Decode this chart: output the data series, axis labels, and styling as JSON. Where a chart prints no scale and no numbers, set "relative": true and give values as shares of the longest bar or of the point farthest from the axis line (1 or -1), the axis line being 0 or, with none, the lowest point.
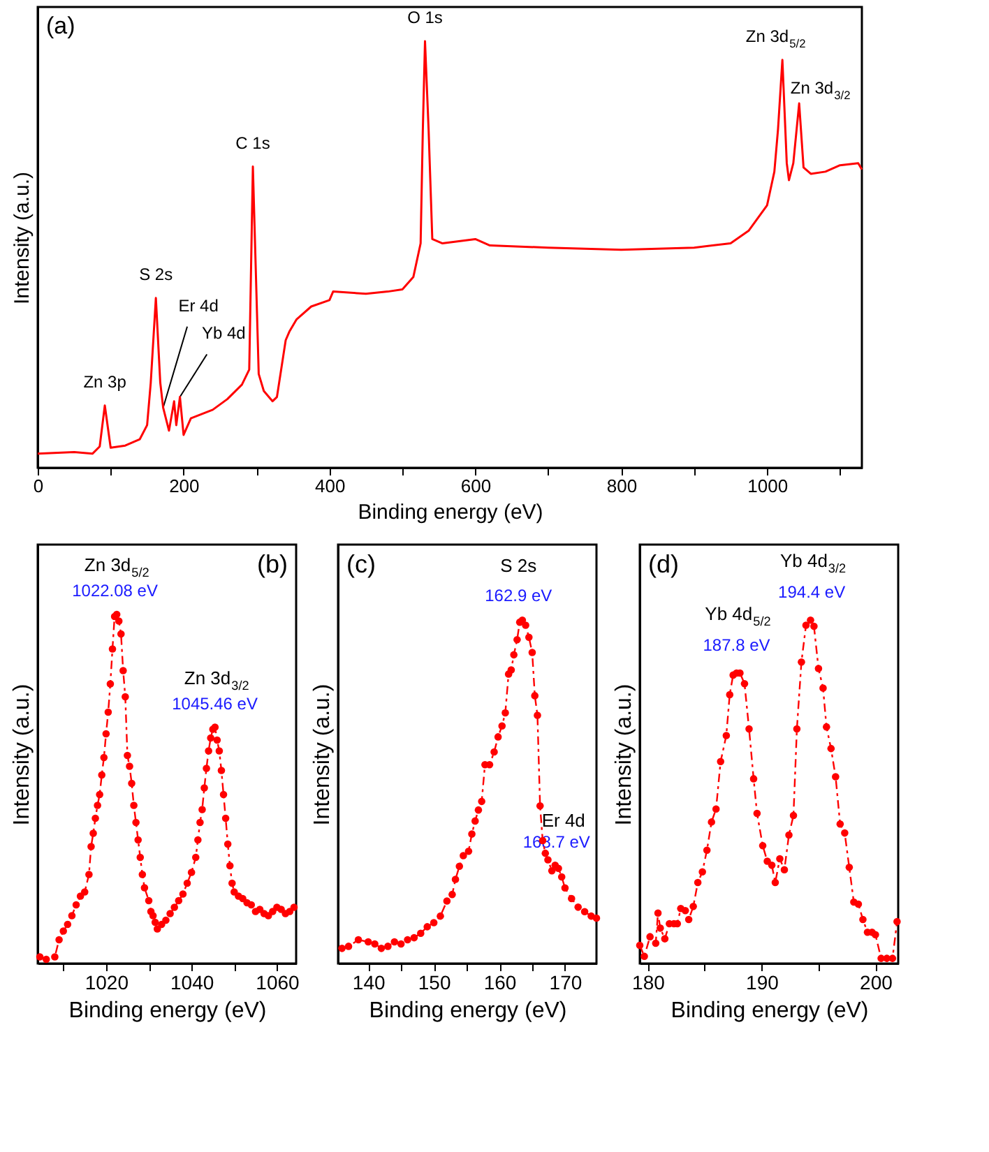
{
  "chart_data": [
    {
      "type": "line",
      "relative": true,
      "xlabel": "Binding energy (eV)",
      "ylabel": "Intensity (a.u.)",
      "xlim": [
        0,
        1130
      ],
      "xticks": [
        0,
        {
          "value": 100,
          "label": null
        },
        200,
        {
          "value": 300,
          "label": null
        },
        400,
        {
          "value": 500,
          "label": null
        },
        600,
        {
          "value": 700,
          "label": null
        },
        800,
        {
          "value": 900,
          "label": null
        },
        1000,
        {
          "value": 1100,
          "label": null
        }
      ],
      "tick_labels": "x",
      "marker": "none",
      "line_style": "solid",
      "x": [
        0,
        50,
        75,
        85,
        92,
        100,
        120,
        140,
        150,
        155,
        162,
        168,
        172,
        180,
        187,
        190,
        195,
        200,
        210,
        240,
        260,
        280,
        290,
        295,
        303,
        310,
        322,
        328,
        340,
        345,
        355,
        375,
        400,
        405,
        450,
        480,
        500,
        515,
        525,
        528,
        531,
        536,
        541,
        555,
        600,
        620,
        700,
        800,
        900,
        950,
        975,
        1000,
        1010,
        1015,
        1021,
        1027,
        1030,
        1036,
        1044,
        1050,
        1060,
        1080,
        1100,
        1125,
        1130
      ],
      "series": [
        {
          "color": "#ff0000",
          "values": [
            0.033,
            0.037,
            0.033,
            0.05,
            0.146,
            0.047,
            0.052,
            0.067,
            0.1,
            0.2,
            0.398,
            0.2,
            0.141,
            0.087,
            0.156,
            0.1,
            0.166,
            0.077,
            0.116,
            0.136,
            0.161,
            0.195,
            0.23,
            0.706,
            0.22,
            0.18,
            0.156,
            0.166,
            0.299,
            0.319,
            0.348,
            0.378,
            0.393,
            0.413,
            0.408,
            0.413,
            0.418,
            0.447,
            0.526,
            0.79,
            1.0,
            0.79,
            0.536,
            0.526,
            0.536,
            0.521,
            0.516,
            0.511,
            0.516,
            0.526,
            0.556,
            0.615,
            0.694,
            0.793,
            0.956,
            0.714,
            0.674,
            0.714,
            0.854,
            0.704,
            0.689,
            0.694,
            0.709,
            0.714,
            0.699
          ]
        }
      ],
      "annotations": [
        "(a)",
        {
          "text": "Zn 3p",
          "x": 92,
          "y": 0.146
        },
        {
          "text": "S 2s",
          "x": 162,
          "y": 0.398
        },
        {
          "text": "Er 4d",
          "x": 172,
          "y": 0.141
        },
        {
          "text": "Yb 4d",
          "x": 195,
          "y": 0.166
        },
        {
          "text": "C 1s",
          "x": 295,
          "y": 0.706
        },
        {
          "text": "O 1s",
          "x": 531,
          "y": 1.0
        },
        {
          "text": "Zn 3d$_{5/2}$",
          "x": 1021,
          "y": 0.956
        },
        {
          "text": "Zn 3d$_{3/2}$",
          "x": 1044,
          "y": 0.854
        }
      ]
    },
    {
      "type": "line",
      "relative": true,
      "xlabel": "Binding energy (eV)",
      "ylabel": "Intensity (a.u.)",
      "xlim": [
        1004,
        1064.5
      ],
      "xticks": [
        {
          "value": 1010,
          "label": null
        },
        1020,
        {
          "value": 1030,
          "label": null
        },
        1040,
        {
          "value": 1050,
          "label": null
        },
        1060
      ],
      "tick_labels": "x",
      "marker": "circle",
      "line_style": "dashed",
      "x": [
        1004.5,
        1006,
        1008,
        1009,
        1010,
        1011,
        1012,
        1013,
        1014,
        1015,
        1016,
        1016.5,
        1017,
        1017.5,
        1018,
        1018.5,
        1019,
        1019.5,
        1020,
        1020.5,
        1021,
        1021.5,
        1022,
        1022.5,
        1023,
        1023.5,
        1024,
        1024.5,
        1025,
        1025.5,
        1026,
        1026.5,
        1027,
        1027.5,
        1028,
        1028.5,
        1029,
        1030,
        1030.5,
        1031,
        1031.5,
        1032,
        1033,
        1034,
        1035,
        1036,
        1037,
        1038,
        1039,
        1040,
        1041,
        1041.5,
        1042,
        1042.5,
        1043,
        1043.5,
        1044,
        1044.5,
        1045,
        1045.5,
        1046,
        1046.5,
        1047,
        1047.5,
        1048,
        1048.5,
        1049,
        1049.5,
        1050,
        1051,
        1052,
        1053,
        1054,
        1055,
        1056,
        1057,
        1058,
        1059,
        1060,
        1061,
        1062,
        1063,
        1064
      ],
      "series": [
        {
          "color": "#ff0000",
          "values": [
            0.019,
            0.012,
            0.019,
            0.068,
            0.093,
            0.112,
            0.137,
            0.168,
            0.193,
            0.205,
            0.255,
            0.335,
            0.373,
            0.416,
            0.453,
            0.484,
            0.54,
            0.59,
            0.658,
            0.72,
            0.801,
            0.901,
            0.994,
            1.0,
            0.981,
            0.944,
            0.839,
            0.764,
            0.596,
            0.565,
            0.516,
            0.453,
            0.404,
            0.354,
            0.304,
            0.255,
            0.217,
            0.18,
            0.149,
            0.137,
            0.118,
            0.099,
            0.112,
            0.124,
            0.143,
            0.161,
            0.18,
            0.199,
            0.23,
            0.261,
            0.304,
            0.354,
            0.404,
            0.441,
            0.503,
            0.559,
            0.609,
            0.646,
            0.671,
            0.677,
            0.64,
            0.609,
            0.553,
            0.484,
            0.416,
            0.342,
            0.28,
            0.23,
            0.205,
            0.193,
            0.186,
            0.174,
            0.168,
            0.149,
            0.155,
            0.143,
            0.137,
            0.149,
            0.161,
            0.155,
            0.143,
            0.149,
            0.161
          ]
        }
      ],
      "annotations": [
        "(b)",
        {
          "text": "Zn 3d$_{5/2}$",
          "x": 1022.08,
          "y": 1.0
        },
        {
          "text": "1022.08 eV",
          "x": 1022.08,
          "y": 1.0
        },
        {
          "text": "Zn 3d$_{3/2}$",
          "x": 1045.46,
          "y": 0.677
        },
        {
          "text": "1045.46 eV",
          "x": 1045.46,
          "y": 0.677
        }
      ]
    },
    {
      "type": "line",
      "relative": true,
      "xlabel": "Binding energy (eV)",
      "ylabel": "Intensity (a.u.)",
      "xlim": [
        135.4,
        174.8
      ],
      "xticks": [
        140,
        {
          "value": 145,
          "label": null
        },
        150,
        {
          "value": 155,
          "label": null
        },
        160,
        {
          "value": 165,
          "label": null
        },
        170
      ],
      "tick_labels": "x",
      "marker": "circle",
      "line_style": "dashed",
      "x": [
        136,
        137,
        138.5,
        140,
        141,
        142,
        143,
        144,
        145,
        146,
        147,
        148,
        149,
        150,
        151,
        152,
        152.8,
        153.3,
        153.9,
        154.5,
        155.3,
        155.8,
        156.3,
        156.8,
        157.3,
        157.8,
        158.5,
        159.2,
        159.8,
        160.4,
        160.9,
        161.4,
        161.8,
        162.2,
        162.7,
        163.1,
        163.5,
        164,
        164.5,
        165,
        165.4,
        165.8,
        166.2,
        166.6,
        167,
        167.4,
        168,
        168.5,
        169,
        169.5,
        170,
        171,
        172,
        173,
        174,
        174.8
      ],
      "series": [
        {
          "color": "#ff0000",
          "values": [
            0.044,
            0.05,
            0.069,
            0.063,
            0.057,
            0.044,
            0.05,
            0.063,
            0.057,
            0.069,
            0.075,
            0.088,
            0.107,
            0.119,
            0.138,
            0.182,
            0.201,
            0.245,
            0.283,
            0.314,
            0.327,
            0.377,
            0.415,
            0.447,
            0.472,
            0.579,
            0.579,
            0.616,
            0.66,
            0.692,
            0.73,
            0.843,
            0.855,
            0.899,
            0.943,
            0.994,
            1.0,
            0.985,
            0.95,
            0.906,
            0.78,
            0.723,
            0.459,
            0.358,
            0.321,
            0.302,
            0.27,
            0.286,
            0.277,
            0.252,
            0.22,
            0.189,
            0.164,
            0.151,
            0.138,
            0.132
          ]
        }
      ],
      "annotations": [
        "(c)",
        {
          "text": "S 2s",
          "x": 162.9,
          "y": 0.99
        },
        {
          "text": "162.9 eV",
          "x": 162.9,
          "y": 0.99
        },
        {
          "text": "Er 4d",
          "x": 168.7,
          "y": 0.28
        },
        {
          "text": "168.7 eV",
          "x": 168.7,
          "y": 0.28
        }
      ]
    },
    {
      "type": "line",
      "relative": true,
      "xlabel": "Binding energy (eV)",
      "ylabel": "Intensity (a.u.)",
      "xlim": [
        179.3,
        202
      ],
      "xticks": [
        180,
        {
          "value": 185,
          "label": null
        },
        190,
        {
          "value": 195,
          "label": null
        },
        200
      ],
      "tick_labels": "x",
      "marker": "circle",
      "line_style": "dashed",
      "x": [
        179.3,
        179.7,
        180.2,
        180.7,
        180.9,
        181.1,
        181.5,
        181.9,
        182.3,
        182.6,
        182.9,
        183.3,
        183.6,
        184,
        184.4,
        184.8,
        185.2,
        185.6,
        186,
        186.4,
        186.9,
        187.2,
        187.5,
        187.8,
        188.1,
        188.5,
        188.9,
        189.3,
        189.6,
        190.1,
        190.5,
        190.9,
        191.2,
        191.6,
        192,
        192.4,
        192.8,
        193.1,
        193.5,
        193.9,
        194.3,
        194.6,
        195,
        195.4,
        195.7,
        196.1,
        196.5,
        196.9,
        197.3,
        197.7,
        198.1,
        198.5,
        198.9,
        199.3,
        199.7,
        200,
        200.5,
        201,
        201.5,
        201.9
      ],
      "series": [
        {
          "color": "#ff0000",
          "values": [
            0.053,
            0.021,
            0.078,
            0.059,
            0.147,
            0.103,
            0.072,
            0.116,
            0.116,
            0.116,
            0.16,
            0.154,
            0.128,
            0.166,
            0.236,
            0.267,
            0.33,
            0.412,
            0.45,
            0.588,
            0.664,
            0.783,
            0.84,
            0.846,
            0.846,
            0.815,
            0.683,
            0.538,
            0.437,
            0.343,
            0.298,
            0.286,
            0.236,
            0.305,
            0.273,
            0.374,
            0.431,
            0.683,
            0.878,
            0.985,
            1.0,
            0.982,
            0.859,
            0.802,
            0.689,
            0.626,
            0.544,
            0.406,
            0.38,
            0.28,
            0.179,
            0.173,
            0.128,
            0.091,
            0.091,
            0.084,
            0.015,
            0.015,
            0.015,
            0.122
          ]
        }
      ],
      "annotations": [
        "(d)",
        {
          "text": "Yb 4d$_{5/2}$",
          "x": 187.8,
          "y": 0.846
        },
        {
          "text": "187.8 eV",
          "x": 187.8,
          "y": 0.846
        },
        {
          "text": "Yb 4d$_{3/2}$",
          "x": 194.4,
          "y": 1.0
        },
        {
          "text": "194.4 eV",
          "x": 194.4,
          "y": 1.0
        }
      ]
    }
  ]
}
